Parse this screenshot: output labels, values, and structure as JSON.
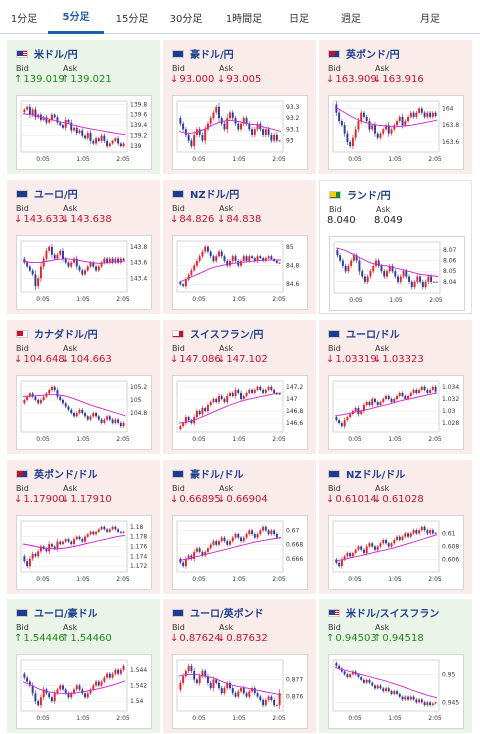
{
  "tabs": [
    {
      "label": "1分足",
      "active": false
    },
    {
      "label": "5分足",
      "active": true
    },
    {
      "label": "15分足",
      "active": false
    },
    {
      "label": "30分足",
      "active": false
    },
    {
      "label": "1時間足",
      "active": false
    },
    {
      "label": "日足",
      "active": false
    },
    {
      "label": "週足",
      "active": false
    },
    {
      "label": "月足",
      "active": false
    }
  ],
  "labels": {
    "bid": "Bid",
    "ask": "Ask"
  },
  "colors": {
    "up": "#1a8a1a",
    "down": "#c8102e",
    "candle_up": "#e0242a",
    "candle_down": "#2b3b9e",
    "ma": "#d024d0"
  },
  "chart_data": [
    {
      "type": "candlestick",
      "title": "米ドル/円",
      "bid": "139.019",
      "ask": "139.021",
      "dir": "up",
      "flag": "us",
      "yticks": [
        "139.8",
        "139.6",
        "139.4",
        "139.2",
        "139"
      ],
      "xticks": [
        "0:05",
        "1:05",
        "2:05"
      ],
      "candles": [
        139.7,
        139.75,
        139.6,
        139.7,
        139.55,
        139.6,
        139.5,
        139.55,
        139.45,
        139.5,
        139.6,
        139.55,
        139.45,
        139.4,
        139.35,
        139.5,
        139.45,
        139.3,
        139.35,
        139.25,
        139.3,
        139.2,
        139.15,
        139.25,
        139.1,
        139.05,
        139.15,
        139.1,
        139.2,
        139.1,
        139.0,
        139.05,
        139.1,
        139.15,
        139.05,
        139.0,
        139.05
      ],
      "ma": [
        139.62,
        139.6,
        139.56,
        139.52,
        139.48,
        139.44,
        139.4,
        139.36,
        139.33,
        139.3,
        139.27,
        139.24,
        139.22
      ]
    },
    {
      "type": "candlestick",
      "title": "豪ドル/円",
      "bid": "93.000",
      "ask": "93.005",
      "dir": "down",
      "flag": "au",
      "yticks": [
        "93.3",
        "93.2",
        "93.1",
        "93"
      ],
      "xticks": [
        "0:05",
        "1:05",
        "2:05"
      ],
      "candles": [
        93.15,
        93.1,
        93.05,
        93.0,
        92.95,
        93.05,
        93.1,
        93.05,
        93.0,
        93.1,
        93.15,
        93.2,
        93.25,
        93.3,
        93.2,
        93.15,
        93.1,
        93.2,
        93.25,
        93.2,
        93.15,
        93.1,
        93.15,
        93.2,
        93.15,
        93.1,
        93.05,
        93.1,
        93.15,
        93.1,
        93.05,
        93.1,
        93.05,
        93.0,
        93.05,
        93.0,
        93.0
      ],
      "ma": [
        93.08,
        93.06,
        93.07,
        93.1,
        93.14,
        93.17,
        93.18,
        93.17,
        93.15,
        93.14,
        93.12,
        93.1,
        93.08
      ]
    },
    {
      "type": "candlestick",
      "title": "英ポンド/円",
      "bid": "163.909",
      "ask": "163.916",
      "dir": "down",
      "flag": "gb",
      "yticks": [
        "164",
        "163.8",
        "163.6"
      ],
      "xticks": [
        "0:05",
        "1:05",
        "2:05"
      ],
      "candles": [
        163.95,
        163.85,
        163.8,
        163.7,
        163.6,
        163.55,
        163.65,
        163.75,
        163.85,
        163.95,
        163.9,
        163.85,
        163.75,
        163.8,
        163.7,
        163.65,
        163.7,
        163.75,
        163.8,
        163.7,
        163.75,
        163.8,
        163.85,
        163.9,
        163.8,
        163.85,
        163.9,
        163.95,
        163.9,
        163.95,
        164.0,
        163.95,
        163.9,
        163.95,
        163.9,
        163.95,
        163.91
      ],
      "ma": [
        164.02,
        163.96,
        163.9,
        163.85,
        163.82,
        163.8,
        163.79,
        163.78,
        163.79,
        163.8,
        163.82,
        163.84,
        163.86
      ]
    },
    {
      "type": "candlestick",
      "title": "ユーロ/円",
      "bid": "143.633",
      "ask": "143.638",
      "dir": "down",
      "flag": "eu",
      "yticks": [
        "143.8",
        "143.6",
        "143.4"
      ],
      "xticks": [
        "0:05",
        "1:05",
        "2:05"
      ],
      "candles": [
        143.6,
        143.55,
        143.5,
        143.45,
        143.3,
        143.4,
        143.55,
        143.65,
        143.75,
        143.8,
        143.7,
        143.65,
        143.7,
        143.75,
        143.65,
        143.6,
        143.55,
        143.6,
        143.65,
        143.55,
        143.5,
        143.45,
        143.5,
        143.55,
        143.6,
        143.55,
        143.5,
        143.55,
        143.6,
        143.65,
        143.6,
        143.65,
        143.6,
        143.65,
        143.6,
        143.65,
        143.63
      ],
      "ma": [
        143.62,
        143.6,
        143.6,
        143.62,
        143.64,
        143.65,
        143.64,
        143.62,
        143.6,
        143.59,
        143.6,
        143.61,
        143.62
      ]
    },
    {
      "type": "candlestick",
      "title": "NZドル/円",
      "bid": "84.826",
      "ask": "84.838",
      "dir": "down",
      "flag": "nz",
      "yticks": [
        "85",
        "84.8",
        "84.6"
      ],
      "xticks": [
        "0:05",
        "1:05",
        "2:05"
      ],
      "candles": [
        84.6,
        84.58,
        84.65,
        84.7,
        84.75,
        84.8,
        84.85,
        84.9,
        84.95,
        85.0,
        84.95,
        84.9,
        84.85,
        84.9,
        84.95,
        84.9,
        84.85,
        84.8,
        84.85,
        84.9,
        84.85,
        84.8,
        84.85,
        84.9,
        84.85,
        84.9,
        84.88,
        84.85,
        84.9,
        84.88,
        84.85,
        84.88,
        84.9,
        84.87,
        84.85,
        84.83,
        84.83
      ],
      "ma": [
        84.62,
        84.66,
        84.7,
        84.74,
        84.78,
        84.8,
        84.82,
        84.83,
        84.84,
        84.85,
        84.86,
        84.86,
        84.86
      ]
    },
    {
      "type": "candlestick",
      "title": "ランド/円",
      "bid": "8.040",
      "ask": "8.049",
      "dir": "flat",
      "flag": "za",
      "yticks": [
        "8.07",
        "8.06",
        "8.05",
        "8.04"
      ],
      "xticks": [
        "0:05",
        "1:05",
        "2:05"
      ],
      "candles": [
        8.065,
        8.06,
        8.055,
        8.05,
        8.055,
        8.06,
        8.065,
        8.06,
        8.05,
        8.045,
        8.04,
        8.045,
        8.05,
        8.055,
        8.06,
        8.055,
        8.05,
        8.045,
        8.05,
        8.055,
        8.05,
        8.045,
        8.04,
        8.045,
        8.05,
        8.045,
        8.04,
        8.035,
        8.04,
        8.045,
        8.04,
        8.035,
        8.04,
        8.045,
        8.04,
        8.04,
        8.04
      ],
      "ma": [
        8.072,
        8.07,
        8.066,
        8.062,
        8.058,
        8.056,
        8.055,
        8.053,
        8.051,
        8.049,
        8.047,
        8.046,
        8.045
      ]
    },
    {
      "type": "candlestick",
      "title": "カナダドル/円",
      "bid": "104.648",
      "ask": "104.663",
      "dir": "down",
      "flag": "ca",
      "yticks": [
        "105.2",
        "105",
        "104.8"
      ],
      "xticks": [
        "0:05",
        "1:05",
        "2:05"
      ],
      "candles": [
        105.0,
        105.05,
        105.1,
        105.05,
        105.0,
        104.95,
        105.0,
        105.05,
        105.1,
        105.15,
        105.2,
        105.15,
        105.05,
        105.0,
        104.95,
        104.9,
        104.85,
        104.8,
        104.75,
        104.8,
        104.85,
        104.8,
        104.75,
        104.7,
        104.75,
        104.8,
        104.75,
        104.7,
        104.65,
        104.7,
        104.75,
        104.7,
        104.65,
        104.7,
        104.65,
        104.6,
        104.65
      ],
      "ma": [
        105.05,
        105.06,
        105.07,
        105.08,
        105.08,
        105.06,
        105.02,
        104.97,
        104.92,
        104.88,
        104.84,
        104.8,
        104.76
      ]
    },
    {
      "type": "candlestick",
      "title": "スイスフラン/円",
      "bid": "147.086",
      "ask": "147.102",
      "dir": "down",
      "flag": "ch",
      "yticks": [
        "147.2",
        "147",
        "146.8",
        "146.6"
      ],
      "xticks": [
        "0:05",
        "1:05",
        "2:05"
      ],
      "candles": [
        146.55,
        146.6,
        146.7,
        146.65,
        146.6,
        146.7,
        146.8,
        146.75,
        146.85,
        146.8,
        146.9,
        146.95,
        147.0,
        146.95,
        147.05,
        147.0,
        146.95,
        147.05,
        147.1,
        147.05,
        147.15,
        147.1,
        147.0,
        147.05,
        147.1,
        147.15,
        147.1,
        147.15,
        147.2,
        147.15,
        147.1,
        147.15,
        147.2,
        147.15,
        147.1,
        147.08,
        147.09
      ],
      "ma": [
        146.6,
        146.62,
        146.66,
        146.72,
        146.78,
        146.84,
        146.9,
        146.95,
        146.99,
        147.02,
        147.05,
        147.08,
        147.1
      ]
    },
    {
      "type": "candlestick",
      "title": "ユーロ/ドル",
      "bid": "1.03319",
      "ask": "1.03323",
      "dir": "down",
      "flag": "eu",
      "yticks": [
        "1.034",
        "1.032",
        "1.03",
        "1.028"
      ],
      "xticks": [
        "0:05",
        "1:05",
        "2:05"
      ],
      "candles": [
        1.0285,
        1.028,
        1.0275,
        1.0285,
        1.029,
        1.0295,
        1.03,
        1.0305,
        1.0295,
        1.03,
        1.031,
        1.0315,
        1.031,
        1.032,
        1.0315,
        1.031,
        1.0315,
        1.032,
        1.0325,
        1.032,
        1.0315,
        1.032,
        1.0325,
        1.033,
        1.0325,
        1.032,
        1.0325,
        1.033,
        1.0335,
        1.033,
        1.0335,
        1.034,
        1.0335,
        1.033,
        1.0335,
        1.034,
        1.0332
      ],
      "ma": [
        1.0292,
        1.0294,
        1.0297,
        1.03,
        1.0303,
        1.0307,
        1.031,
        1.0314,
        1.0318,
        1.0321,
        1.0324,
        1.0327,
        1.033
      ]
    },
    {
      "type": "candlestick",
      "title": "英ポンド/ドル",
      "bid": "1.17900",
      "ask": "1.17910",
      "dir": "down",
      "flag": "gb",
      "yticks": [
        "1.18",
        "1.178",
        "1.176",
        "1.174",
        "1.172"
      ],
      "xticks": [
        "0:05",
        "1:05",
        "2:05"
      ],
      "candles": [
        1.173,
        1.172,
        1.1735,
        1.1745,
        1.174,
        1.175,
        1.176,
        1.1755,
        1.175,
        1.1765,
        1.176,
        1.1755,
        1.177,
        1.1765,
        1.177,
        1.1775,
        1.177,
        1.1765,
        1.1775,
        1.178,
        1.1775,
        1.177,
        1.178,
        1.1785,
        1.179,
        1.1785,
        1.179,
        1.1795,
        1.18,
        1.1795,
        1.179,
        1.1795,
        1.18,
        1.1795,
        1.179,
        1.1788,
        1.179
      ],
      "ma": [
        1.1765,
        1.1762,
        1.1758,
        1.1756,
        1.1755,
        1.1757,
        1.176,
        1.1764,
        1.1768,
        1.1772,
        1.1776,
        1.178,
        1.1783
      ]
    },
    {
      "type": "candlestick",
      "title": "豪ドル/ドル",
      "bid": "0.66895",
      "ask": "0.66904",
      "dir": "down",
      "flag": "au",
      "yticks": [
        "0.67",
        "0.668",
        "0.666"
      ],
      "xticks": [
        "0:05",
        "1:05",
        "2:05"
      ],
      "candles": [
        0.6655,
        0.665,
        0.666,
        0.6665,
        0.666,
        0.667,
        0.6675,
        0.667,
        0.6665,
        0.667,
        0.6675,
        0.668,
        0.6685,
        0.668,
        0.6685,
        0.669,
        0.6685,
        0.668,
        0.6685,
        0.669,
        0.6695,
        0.669,
        0.6685,
        0.669,
        0.6695,
        0.67,
        0.6695,
        0.669,
        0.6695,
        0.67,
        0.6705,
        0.67,
        0.6695,
        0.67,
        0.6695,
        0.669,
        0.669
      ],
      "ma": [
        0.6658,
        0.666,
        0.6663,
        0.6666,
        0.6669,
        0.6672,
        0.6675,
        0.6678,
        0.6681,
        0.6684,
        0.6686,
        0.6688,
        0.669
      ]
    },
    {
      "type": "candlestick",
      "title": "NZドル/ドル",
      "bid": "0.61014",
      "ask": "0.61028",
      "dir": "down",
      "flag": "nz",
      "yticks": [
        "0.61",
        "0.608",
        "0.606"
      ],
      "xticks": [
        "0:05",
        "1:05",
        "2:05"
      ],
      "candles": [
        0.6055,
        0.605,
        0.606,
        0.6065,
        0.607,
        0.6065,
        0.607,
        0.6075,
        0.608,
        0.6075,
        0.607,
        0.608,
        0.6085,
        0.608,
        0.6075,
        0.608,
        0.6085,
        0.609,
        0.6085,
        0.608,
        0.6085,
        0.609,
        0.6095,
        0.609,
        0.6095,
        0.61,
        0.6095,
        0.61,
        0.6105,
        0.61,
        0.6105,
        0.611,
        0.6105,
        0.61,
        0.6105,
        0.61,
        0.6101
      ],
      "ma": [
        0.6058,
        0.606,
        0.6063,
        0.6066,
        0.6069,
        0.6072,
        0.6075,
        0.6078,
        0.6082,
        0.6086,
        0.609,
        0.6094,
        0.6098
      ]
    },
    {
      "type": "candlestick",
      "title": "ユーロ/豪ドル",
      "bid": "1.54446",
      "ask": "1.54460",
      "dir": "up",
      "flag": "eu",
      "yticks": [
        "1.544",
        "1.542",
        "1.54"
      ],
      "xticks": [
        "0:05",
        "1:05",
        "2:05"
      ],
      "candles": [
        1.543,
        1.5425,
        1.542,
        1.541,
        1.54,
        1.5395,
        1.5405,
        1.5415,
        1.541,
        1.5405,
        1.54,
        1.541,
        1.5415,
        1.542,
        1.5415,
        1.541,
        1.5405,
        1.541,
        1.5415,
        1.542,
        1.5415,
        1.541,
        1.5405,
        1.541,
        1.5415,
        1.542,
        1.5425,
        1.542,
        1.5425,
        1.543,
        1.5435,
        1.543,
        1.5435,
        1.544,
        1.5435,
        1.544,
        1.5445
      ],
      "ma": [
        1.5425,
        1.542,
        1.5415,
        1.5412,
        1.541,
        1.541,
        1.541,
        1.5412,
        1.5414,
        1.5416,
        1.5419,
        1.5422,
        1.5426
      ]
    },
    {
      "type": "candlestick",
      "title": "ユーロ/英ポンド",
      "bid": "0.87624",
      "ask": "0.87632",
      "dir": "down",
      "flag": "eu",
      "yticks": [
        "0.877",
        "0.876"
      ],
      "xticks": [
        "0:05",
        "1:05",
        "2:05"
      ],
      "candles": [
        0.8768,
        0.8772,
        0.8775,
        0.8778,
        0.8775,
        0.877,
        0.8768,
        0.8772,
        0.8775,
        0.8772,
        0.8768,
        0.8765,
        0.877,
        0.8768,
        0.8765,
        0.8762,
        0.8765,
        0.8768,
        0.8765,
        0.8762,
        0.876,
        0.8763,
        0.8765,
        0.8762,
        0.876,
        0.8763,
        0.8765,
        0.8762,
        0.876,
        0.8758,
        0.8755,
        0.8758,
        0.876,
        0.8758,
        0.8755,
        0.8755,
        0.8762
      ],
      "ma": [
        0.8772,
        0.8773,
        0.8773,
        0.8772,
        0.8771,
        0.8769,
        0.8767,
        0.8766,
        0.8765,
        0.8764,
        0.8763,
        0.8762,
        0.8761
      ]
    },
    {
      "type": "candlestick",
      "title": "米ドル/スイスフラン",
      "bid": "0.94503",
      "ask": "0.94518",
      "dir": "up",
      "flag": "us",
      "yticks": [
        "0.95",
        "0.945"
      ],
      "xticks": [
        "0:05",
        "1:05",
        "2:05"
      ],
      "candles": [
        0.9515,
        0.951,
        0.9505,
        0.95,
        0.9495,
        0.95,
        0.9505,
        0.95,
        0.9495,
        0.949,
        0.9485,
        0.949,
        0.9485,
        0.948,
        0.9475,
        0.948,
        0.9475,
        0.947,
        0.9475,
        0.947,
        0.9465,
        0.947,
        0.9465,
        0.946,
        0.9455,
        0.946,
        0.9455,
        0.946,
        0.9455,
        0.945,
        0.9455,
        0.945,
        0.9445,
        0.945,
        0.9445,
        0.9448,
        0.945
      ],
      "ma": [
        0.9512,
        0.9508,
        0.9504,
        0.95,
        0.9496,
        0.9492,
        0.9488,
        0.9483,
        0.9478,
        0.9472,
        0.9467,
        0.9462,
        0.9458
      ]
    }
  ]
}
